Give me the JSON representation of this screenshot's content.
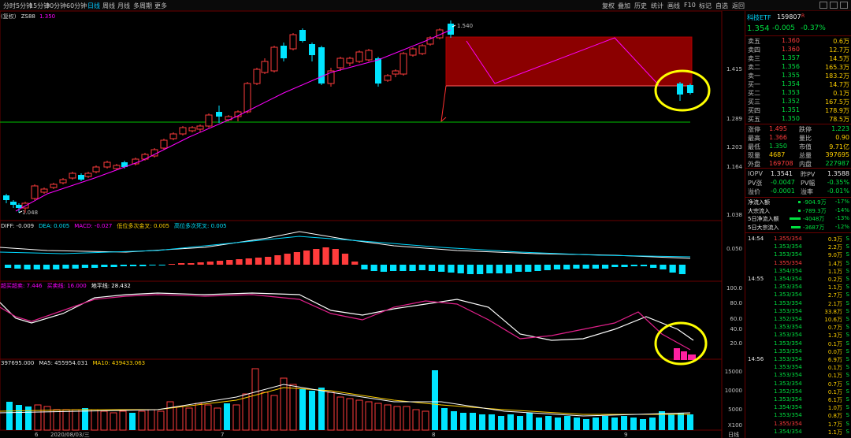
{
  "toolbar": {
    "left": [
      "分时",
      "5分钟",
      "15分钟",
      "30分钟",
      "60分钟",
      "日线",
      "周线",
      "月线",
      "多周期",
      "更多"
    ],
    "active": "日线",
    "right": [
      "复权",
      "叠加",
      "历史",
      "统计",
      "画线",
      "F10",
      "标记",
      "自选",
      "返回"
    ]
  },
  "chart_header": {
    "ma_label": "ZS88",
    "ma_value": "1.350",
    "prefix": "(复权)"
  },
  "price_axis": [
    "1.415",
    "1.289",
    "1.203",
    "1.164",
    "1.038"
  ],
  "price_annotations": {
    "high": "1.540",
    "low": "1.048"
  },
  "macd": {
    "labels": [
      "DIFF: -0.009",
      "DEA: 0.005",
      "MACD: -0.027",
      "低位多次金叉: 0.005",
      "高位多次死叉: 0.005"
    ],
    "axis": [
      "0.050"
    ]
  },
  "kdj": {
    "labels": [
      "超买超卖: 7.446",
      "买卖线: 16.000",
      "地平线: 28.432"
    ],
    "axis": [
      "100.0",
      "80.0",
      "60.0",
      "40.0",
      "20.0"
    ]
  },
  "volume": {
    "labels": [
      "397695.000",
      "MA5: 455954.031",
      "MA10: 439433.063"
    ],
    "axis": [
      "15000",
      "10000",
      "5000",
      "X100"
    ]
  },
  "date_axis": [
    "6",
    "2020/08/03/三",
    "7",
    "8",
    "9",
    "日线"
  ],
  "quote": {
    "name": "科技ETF",
    "code": "159807",
    "price": "1.354",
    "change": "-0.005",
    "change_pct": "-0.37%",
    "asks": [
      {
        "label": "卖五",
        "price": "1.360",
        "vol": "0.6万"
      },
      {
        "label": "卖四",
        "price": "1.360",
        "vol": "12.7万"
      },
      {
        "label": "卖三",
        "price": "1.357",
        "vol": "14.5万"
      },
      {
        "label": "卖二",
        "price": "1.356",
        "vol": "165.3万"
      },
      {
        "label": "卖一",
        "price": "1.355",
        "vol": "183.2万"
      }
    ],
    "bids": [
      {
        "label": "买一",
        "price": "1.354",
        "vol": "14.7万"
      },
      {
        "label": "买二",
        "price": "1.353",
        "vol": "0.1万"
      },
      {
        "label": "买三",
        "price": "1.352",
        "vol": "167.5万"
      },
      {
        "label": "买四",
        "price": "1.351",
        "vol": "178.9万"
      },
      {
        "label": "买五",
        "price": "1.350",
        "vol": "78.5万"
      }
    ],
    "stats": [
      {
        "l1": "涨停",
        "v1": "1.495",
        "l2": "跌停",
        "v2": "1.223"
      },
      {
        "l1": "最高",
        "v1": "1.366",
        "l2": "量比",
        "v2": "0.90"
      },
      {
        "l1": "最低",
        "v1": "1.350",
        "l2": "市值",
        "v2": "9.71亿"
      },
      {
        "l1": "现量",
        "v1": "4687",
        "l2": "总量",
        "v2": "397695"
      },
      {
        "l1": "外盘",
        "v1": "169708",
        "l2": "内盘",
        "v2": "227987"
      }
    ],
    "iopv": [
      {
        "l1": "IOPV",
        "v1": "1.3541",
        "l2": "昨PV",
        "v2": "1.3588"
      },
      {
        "l1": "PV涨",
        "v1": "-0.0047",
        "l2": "PV幅",
        "v2": "-0.35%"
      },
      {
        "l1": "溢价",
        "v1": "-0.0001",
        "l2": "溢率",
        "v2": "-0.01%"
      }
    ],
    "flows": [
      {
        "label": "净流入额",
        "value": "-904.9万",
        "pct": "-17%"
      },
      {
        "label": "大宗流入",
        "value": "-789.3万",
        "pct": "-14%"
      },
      {
        "label": "5日净流入额",
        "value": "-4048万",
        "pct": "-13%"
      },
      {
        "label": "5日大宗流入",
        "value": "-3687万",
        "pct": "-12%"
      }
    ]
  },
  "ticks": [
    {
      "time": "14:54",
      "price": "1.355/354",
      "vol": "0.3万",
      "side": "S"
    },
    {
      "time": "",
      "price": "1.353/354",
      "vol": "2.2万",
      "side": "S"
    },
    {
      "time": "",
      "price": "1.353/354",
      "vol": "9.0万",
      "side": "S"
    },
    {
      "time": "",
      "price": "1.355/354",
      "vol": "1.4万",
      "side": "S"
    },
    {
      "time": "",
      "price": "1.354/354",
      "vol": "1.1万",
      "side": "S"
    },
    {
      "time": "14:55",
      "price": "1.354/354",
      "vol": "0.2万",
      "side": "S"
    },
    {
      "time": "",
      "price": "1.353/354",
      "vol": "1.1万",
      "side": "S"
    },
    {
      "time": "",
      "price": "1.353/354",
      "vol": "2.7万",
      "side": "S"
    },
    {
      "time": "",
      "price": "1.353/354",
      "vol": "2.1万",
      "side": "S"
    },
    {
      "time": "",
      "price": "1.353/354",
      "vol": "33.8万",
      "side": "S"
    },
    {
      "time": "",
      "price": "1.352/354",
      "vol": "10.6万",
      "side": "S"
    },
    {
      "time": "",
      "price": "1.353/354",
      "vol": "0.7万",
      "side": "S"
    },
    {
      "time": "",
      "price": "1.353/354",
      "vol": "1.3万",
      "side": "S"
    },
    {
      "time": "",
      "price": "1.353/354",
      "vol": "0.1万",
      "side": "S"
    },
    {
      "time": "",
      "price": "1.353/354",
      "vol": "0.0万",
      "side": "S"
    },
    {
      "time": "14:56",
      "price": "1.353/354",
      "vol": "6.9万",
      "side": "S"
    },
    {
      "time": "",
      "price": "1.353/354",
      "vol": "0.1万",
      "side": "S"
    },
    {
      "time": "",
      "price": "1.353/354",
      "vol": "0.1万",
      "side": "S"
    },
    {
      "time": "",
      "price": "1.353/354",
      "vol": "0.7万",
      "side": "S"
    },
    {
      "time": "",
      "price": "1.352/354",
      "vol": "0.1万",
      "side": "S"
    },
    {
      "time": "",
      "price": "1.353/354",
      "vol": "6.1万",
      "side": "S"
    },
    {
      "time": "",
      "price": "1.354/354",
      "vol": "1.0万",
      "side": "S"
    },
    {
      "time": "",
      "price": "1.353/354",
      "vol": "0.8万",
      "side": "S"
    },
    {
      "time": "",
      "price": "1.355/354",
      "vol": "1.7万",
      "side": "S"
    },
    {
      "time": "",
      "price": "1.354/354",
      "vol": "1.1万",
      "side": "S"
    }
  ],
  "colors": {
    "up": "#ff3c3c",
    "down": "#00e4ff",
    "ma": "#ff00ff",
    "support": "#00c000",
    "zone": "#8b0000",
    "highlight": "#ffff00"
  }
}
